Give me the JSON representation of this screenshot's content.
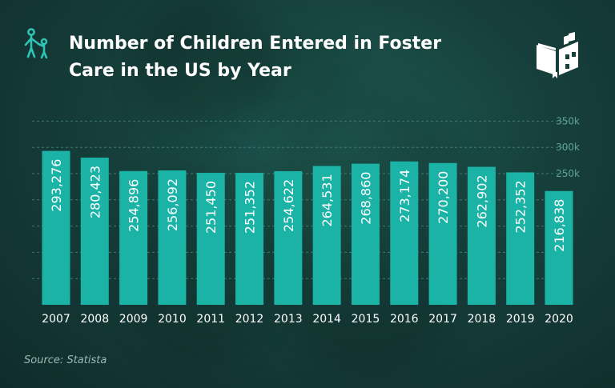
{
  "header": {
    "title_line1": "Number of Children Entered in Foster",
    "title_line2": "Care in the US by Year",
    "title_icon": "parent-child-icon",
    "logo_icon": "book-building-logo"
  },
  "footer": {
    "source": "Source: Statista"
  },
  "colors": {
    "bar": "#1ab3a6",
    "background": "#163f3b",
    "grid": "#3f7a72",
    "tick_label": "#5fa39a",
    "text": "#ffffff"
  },
  "chart_data": {
    "type": "bar",
    "categories": [
      "2007",
      "2008",
      "2009",
      "2010",
      "2011",
      "2012",
      "2013",
      "2014",
      "2015",
      "2016",
      "2017",
      "2018",
      "2019",
      "2020"
    ],
    "values": [
      293276,
      280423,
      254896,
      256092,
      251450,
      251352,
      254622,
      264531,
      268860,
      273174,
      270200,
      262902,
      252352,
      216838
    ],
    "value_labels": [
      "293,276",
      "280,423",
      "254,896",
      "256,092",
      "251,450",
      "251,352",
      "254,622",
      "264,531",
      "268,860",
      "273,174",
      "270,200",
      "262,902",
      "252,352",
      "216,838"
    ],
    "ylim": [
      0,
      350000
    ],
    "yticks": [
      250000,
      300000,
      350000
    ],
    "ytick_labels": [
      "250k",
      "300k",
      "350k"
    ],
    "grid": true,
    "legend": false
  }
}
